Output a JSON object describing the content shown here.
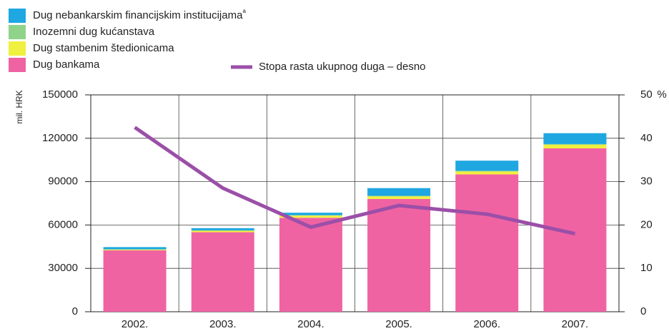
{
  "chart_data": {
    "type": "bar",
    "categories": [
      "2002.",
      "2003.",
      "2004.",
      "2005.",
      "2006.",
      "2007."
    ],
    "stacked": true,
    "series": [
      {
        "name": "Dug bankama",
        "color": "#ef63a3",
        "values": [
          42500,
          55000,
          65000,
          78000,
          95000,
          113000
        ]
      },
      {
        "name": "Dug stambenim štedionicama",
        "color": "#f0f040",
        "values": [
          500,
          1000,
          1500,
          1800,
          2000,
          2500
        ]
      },
      {
        "name": "Inozemni dug kućanstava",
        "color": "#8fd38a",
        "values": [
          200,
          300,
          300,
          400,
          500,
          500
        ]
      },
      {
        "name": "Dug nebankarskim financijskim institucijama",
        "name_note": "a",
        "color": "#1ea7e1",
        "values": [
          1500,
          1500,
          1700,
          5300,
          7000,
          7500
        ]
      },
      {
        "name": "Stopa rasta ukupnog duga – desno",
        "type": "line",
        "axis": "y2",
        "color": "#9b4fa8",
        "values": [
          42.5,
          28.5,
          19.5,
          24.5,
          22.5,
          18
        ]
      }
    ],
    "y_label": "mil. HRK",
    "y2_label": "%",
    "ylim": [
      0,
      150000
    ],
    "yticks": [
      0,
      30000,
      60000,
      90000,
      120000,
      150000
    ],
    "y2lim": [
      0,
      50
    ],
    "y2ticks": [
      0,
      10,
      20,
      30,
      40,
      50
    ],
    "grid": true
  }
}
